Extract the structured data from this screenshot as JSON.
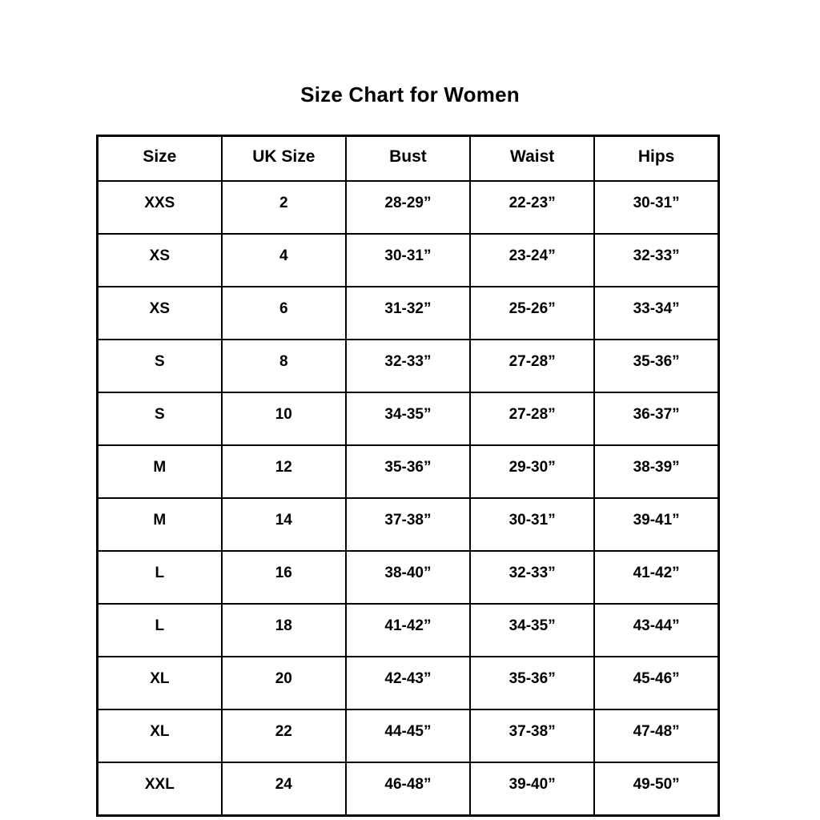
{
  "title": "Size Chart for Women",
  "colors": {
    "background": "#ffffff",
    "border": "#000000",
    "text": "#000000"
  },
  "chart_data": {
    "type": "table",
    "title": "Size Chart for Women",
    "columns": [
      "Size",
      "UK Size",
      "Bust",
      "Waist",
      "Hips"
    ],
    "rows": [
      [
        "XXS",
        "2",
        "28-29”",
        "22-23”",
        "30-31”"
      ],
      [
        "XS",
        "4",
        "30-31”",
        "23-24”",
        "32-33”"
      ],
      [
        "XS",
        "6",
        "31-32”",
        "25-26”",
        "33-34”"
      ],
      [
        "S",
        "8",
        "32-33”",
        "27-28”",
        "35-36”"
      ],
      [
        "S",
        "10",
        "34-35”",
        "27-28”",
        "36-37”"
      ],
      [
        "M",
        "12",
        "35-36”",
        "29-30”",
        "38-39”"
      ],
      [
        "M",
        "14",
        "37-38”",
        "30-31”",
        "39-41”"
      ],
      [
        "L",
        "16",
        "38-40”",
        "32-33”",
        "41-42”"
      ],
      [
        "L",
        "18",
        "41-42”",
        "34-35”",
        "43-44”"
      ],
      [
        "XL",
        "20",
        "42-43”",
        "35-36”",
        "45-46”"
      ],
      [
        "XL",
        "22",
        "44-45”",
        "37-38”",
        "47-48”"
      ],
      [
        "XXL",
        "24",
        "46-48”",
        "39-40”",
        "49-50”"
      ]
    ]
  }
}
